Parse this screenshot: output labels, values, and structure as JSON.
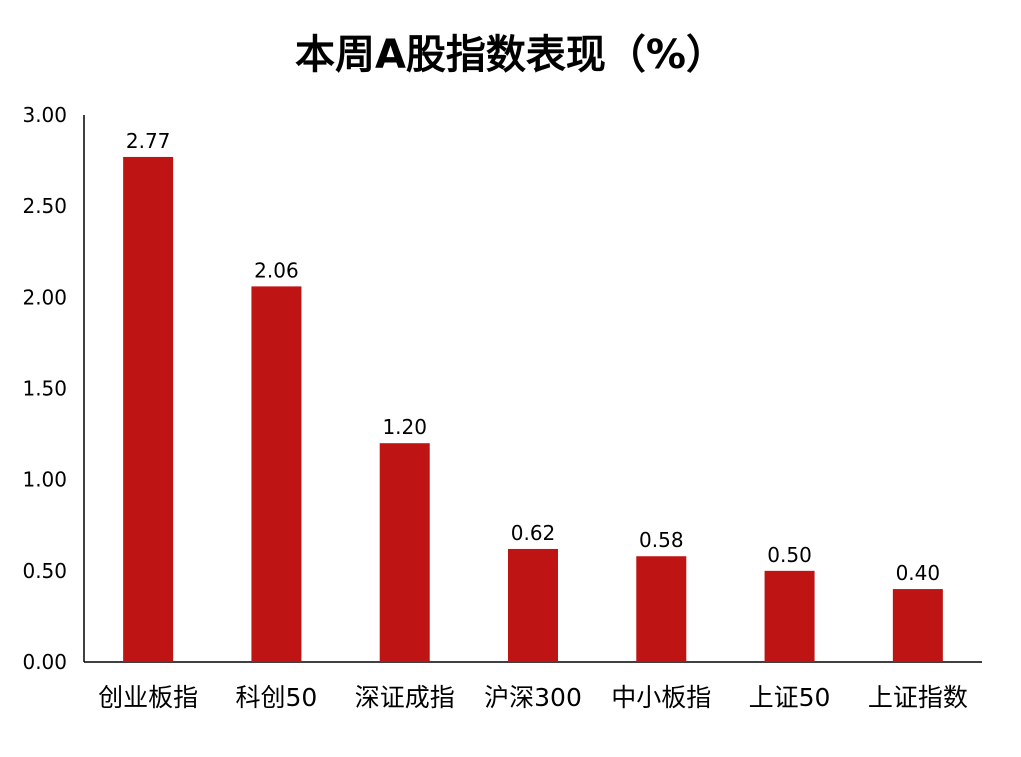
{
  "chart_data": {
    "type": "bar",
    "title": "本周A股指数表现（%）",
    "categories": [
      "创业板指",
      "科创50",
      "深证成指",
      "沪深300",
      "中小板指",
      "上证50",
      "上证指数"
    ],
    "values": [
      2.77,
      2.06,
      1.2,
      0.62,
      0.58,
      0.5,
      0.4
    ],
    "data_labels": [
      "2.77",
      "2.06",
      "1.20",
      "0.62",
      "0.58",
      "0.50",
      "0.40"
    ],
    "y_ticks": [
      "0.00",
      "0.50",
      "1.00",
      "1.50",
      "2.00",
      "2.50",
      "3.00"
    ],
    "y_tick_values": [
      0,
      0.5,
      1.0,
      1.5,
      2.0,
      2.5,
      3.0
    ],
    "xlabel": "",
    "ylabel": "",
    "ylim": [
      0,
      3.0
    ],
    "grid": false,
    "legend": "none",
    "bar_color": "#BE1414"
  }
}
